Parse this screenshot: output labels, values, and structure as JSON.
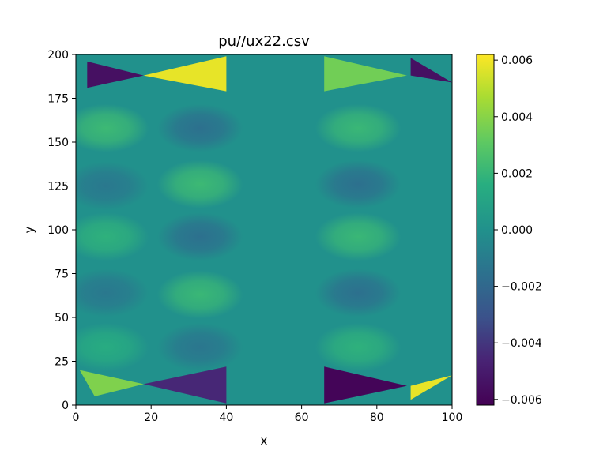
{
  "chart_data": {
    "type": "heatmap",
    "title": "pu//ux22.csv",
    "xlabel": "x",
    "ylabel": "y",
    "xlim": [
      0,
      100
    ],
    "ylim": [
      0,
      200
    ],
    "x_ticks": [
      "0",
      "20",
      "40",
      "60",
      "80",
      "100"
    ],
    "y_ticks": [
      "0",
      "25",
      "50",
      "75",
      "100",
      "125",
      "150",
      "175",
      "200"
    ],
    "colormap": "viridis",
    "colorbar": {
      "vmin": -0.0062,
      "vmax": 0.0062,
      "ticks": [
        0.006,
        0.004,
        0.002,
        0.0,
        -0.002,
        -0.004,
        -0.006
      ],
      "tick_labels": [
        "0.006",
        "0.004",
        "0.002",
        "0.000",
        "−0.002",
        "−0.004",
        "−0.006"
      ]
    },
    "grid": false,
    "field": {
      "background_value": 0.0,
      "blobs": [
        {
          "x_center": 8,
          "y_center": 158,
          "value": 0.0022
        },
        {
          "x_center": 8,
          "y_center": 125,
          "value": -0.0012
        },
        {
          "x_center": 8,
          "y_center": 96,
          "value": 0.0018
        },
        {
          "x_center": 8,
          "y_center": 64,
          "value": -0.0012
        },
        {
          "x_center": 8,
          "y_center": 33,
          "value": 0.0015
        },
        {
          "x_center": 33,
          "y_center": 158,
          "value": -0.0016
        },
        {
          "x_center": 33,
          "y_center": 126,
          "value": 0.0022
        },
        {
          "x_center": 33,
          "y_center": 96,
          "value": -0.0016
        },
        {
          "x_center": 33,
          "y_center": 63,
          "value": 0.0021
        },
        {
          "x_center": 33,
          "y_center": 33,
          "value": -0.0013
        },
        {
          "x_center": 75,
          "y_center": 158,
          "value": 0.0021
        },
        {
          "x_center": 75,
          "y_center": 126,
          "value": -0.0016
        },
        {
          "x_center": 75,
          "y_center": 96,
          "value": 0.0021
        },
        {
          "x_center": 75,
          "y_center": 64,
          "value": -0.0016
        },
        {
          "x_center": 75,
          "y_center": 33,
          "value": 0.0018
        }
      ],
      "triangles": [
        {
          "points": [
            [
              3,
              196
            ],
            [
              18,
              188
            ],
            [
              3,
              181
            ]
          ],
          "value": -0.0055
        },
        {
          "points": [
            [
              18,
              188
            ],
            [
              40,
              199
            ],
            [
              40,
              179
            ]
          ],
          "value": 0.0058
        },
        {
          "points": [
            [
              66,
              199
            ],
            [
              88,
              188
            ],
            [
              66,
              179
            ]
          ],
          "value": 0.0035
        },
        {
          "points": [
            [
              89,
              198
            ],
            [
              100,
              184
            ],
            [
              89,
              188
            ]
          ],
          "value": -0.0055
        },
        {
          "points": [
            [
              1,
              20
            ],
            [
              18,
              12
            ],
            [
              5,
              5
            ]
          ],
          "value": 0.0038
        },
        {
          "points": [
            [
              18,
              12
            ],
            [
              40,
              22
            ],
            [
              40,
              1
            ]
          ],
          "value": -0.0045
        },
        {
          "points": [
            [
              66,
              22
            ],
            [
              88,
              11
            ],
            [
              66,
              1
            ]
          ],
          "value": -0.006
        },
        {
          "points": [
            [
              89,
              11
            ],
            [
              100,
              17
            ],
            [
              89,
              3
            ]
          ],
          "value": 0.0058
        }
      ]
    }
  }
}
